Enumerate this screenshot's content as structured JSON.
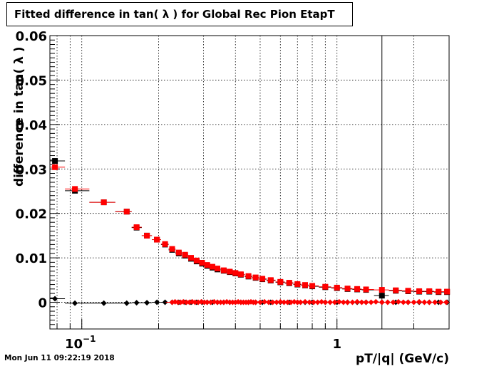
{
  "chart_data": {
    "type": "scatter",
    "title": "Fitted difference in tan( λ ) for Global Rec Pion EtapT",
    "xlabel": "pT/|q| (GeV/c)",
    "ylabel": "difference in tan( λ )",
    "xscale": "log",
    "xlim": [
      0.075,
      2.75
    ],
    "ylim": [
      -0.006,
      0.06
    ],
    "x_tick_labels": [
      "10^-1",
      "1"
    ],
    "y_tick_labels": [
      "0",
      "0.01",
      "0.02",
      "0.03",
      "0.04",
      "0.05",
      "0.06"
    ],
    "grid": true,
    "legend": "none",
    "vertical_line_x": 1.5,
    "series": [
      {
        "color": "#000000",
        "marker": "square",
        "x": [
          0.0785,
          0.094,
          0.122,
          0.15,
          0.164,
          0.18,
          0.197,
          0.212,
          0.226,
          0.24,
          0.254,
          0.268,
          0.282,
          0.296,
          0.31,
          0.325,
          0.34,
          0.36,
          0.38,
          0.4,
          0.42,
          0.45,
          0.48,
          0.51,
          0.55,
          0.6,
          0.65,
          0.7,
          0.75,
          0.8,
          0.9,
          1.0,
          1.1,
          1.2,
          1.3,
          1.5,
          1.7,
          1.9,
          2.1,
          2.3,
          2.5,
          2.7
        ],
        "y": [
          0.0318,
          0.0251,
          0.0225,
          0.0204,
          0.0168,
          0.015,
          0.0141,
          0.013,
          0.0118,
          0.011,
          0.0105,
          0.0098,
          0.0092,
          0.0087,
          0.0082,
          0.0078,
          0.0074,
          0.0071,
          0.0068,
          0.0065,
          0.0062,
          0.0058,
          0.0055,
          0.0052,
          0.0049,
          0.0045,
          0.0043,
          0.004,
          0.0038,
          0.0036,
          0.0034,
          0.0032,
          0.003,
          0.0029,
          0.0028,
          0.0015,
          0.0026,
          0.0025,
          0.0024,
          0.0024,
          0.0023,
          0.0023
        ]
      },
      {
        "color": "#ff0000",
        "marker": "square",
        "x": [
          0.0785,
          0.094,
          0.122,
          0.15,
          0.164,
          0.18,
          0.197,
          0.212,
          0.226,
          0.24,
          0.254,
          0.268,
          0.282,
          0.296,
          0.31,
          0.325,
          0.34,
          0.36,
          0.38,
          0.4,
          0.42,
          0.45,
          0.48,
          0.51,
          0.55,
          0.6,
          0.65,
          0.7,
          0.75,
          0.8,
          0.9,
          1.0,
          1.1,
          1.2,
          1.3,
          1.5,
          1.7,
          1.9,
          2.1,
          2.3,
          2.5,
          2.7
        ],
        "y": [
          0.0304,
          0.0255,
          0.0225,
          0.0204,
          0.0169,
          0.015,
          0.0141,
          0.0131,
          0.012,
          0.0112,
          0.0107,
          0.01,
          0.0094,
          0.0089,
          0.0084,
          0.008,
          0.0076,
          0.0072,
          0.0069,
          0.0066,
          0.0063,
          0.0059,
          0.0056,
          0.0053,
          0.005,
          0.0046,
          0.0044,
          0.0041,
          0.0039,
          0.0037,
          0.0035,
          0.0033,
          0.0031,
          0.003,
          0.0029,
          0.0028,
          0.0027,
          0.0026,
          0.0025,
          0.0025,
          0.0024,
          0.0024
        ]
      },
      {
        "color": "#000000",
        "marker": "diamond",
        "x": [
          0.0785,
          0.094,
          0.122,
          0.15,
          0.164,
          0.18,
          0.197,
          0.212,
          0.226,
          0.24,
          0.254,
          0.268,
          0.282,
          0.296,
          0.31,
          0.325,
          0.34,
          0.36,
          0.38,
          0.4,
          0.42,
          0.45,
          0.48,
          0.51,
          0.55,
          0.6,
          0.65,
          0.7,
          0.75,
          0.8,
          0.9,
          1.0,
          1.1,
          1.2,
          1.3,
          1.5,
          1.7,
          1.9,
          2.1,
          2.3,
          2.5,
          2.7
        ],
        "y": [
          0.0008,
          -0.0002,
          -0.0002,
          -0.0002,
          -0.0001,
          -0.0001,
          0.0,
          0.0,
          0.0,
          0.0,
          0.0,
          0.0,
          0.0,
          0.0,
          0.0,
          0.0,
          0.0,
          0.0,
          0.0,
          0.0,
          0.0,
          0.0,
          0.0,
          0.0,
          0.0,
          0.0,
          0.0,
          0.0,
          0.0,
          0.0,
          0.0,
          0.0,
          0.0,
          0.0,
          0.0,
          0.0,
          0.0,
          0.0,
          0.0,
          0.0,
          0.0,
          0.0
        ]
      },
      {
        "color": "#ff0000",
        "marker": "diamond",
        "x": [
          0.226,
          0.232,
          0.238,
          0.244,
          0.25,
          0.257,
          0.264,
          0.271,
          0.278,
          0.286,
          0.294,
          0.302,
          0.31,
          0.32,
          0.33,
          0.34,
          0.35,
          0.36,
          0.37,
          0.38,
          0.39,
          0.4,
          0.41,
          0.42,
          0.43,
          0.44,
          0.45,
          0.46,
          0.47,
          0.48,
          0.5,
          0.52,
          0.54,
          0.56,
          0.58,
          0.6,
          0.62,
          0.64,
          0.66,
          0.68,
          0.7,
          0.72,
          0.75,
          0.78,
          0.81,
          0.84,
          0.87,
          0.9,
          0.94,
          0.98,
          1.02,
          1.06,
          1.1,
          1.15,
          1.2,
          1.25,
          1.3,
          1.36,
          1.42,
          1.5,
          1.58,
          1.66,
          1.74,
          1.82,
          1.9,
          2.0,
          2.1,
          2.2,
          2.3,
          2.42,
          2.55,
          2.68
        ],
        "y": [
          0.0,
          0.0001,
          0.0,
          0.0,
          0.0001,
          0.0,
          0.0,
          0.0001,
          0.0,
          0.0,
          0.0001,
          0.0,
          0.0,
          0.0,
          0.0001,
          0.0,
          0.0,
          0.0,
          0.0001,
          0.0,
          0.0,
          0.0,
          0.0001,
          0.0,
          0.0,
          0.0,
          0.0,
          0.0001,
          0.0,
          0.0,
          0.0,
          0.0001,
          0.0,
          0.0,
          0.0,
          0.0001,
          0.0,
          0.0,
          0.0,
          0.0001,
          0.0,
          0.0,
          0.0001,
          0.0,
          0.0,
          0.0,
          0.0001,
          0.0,
          0.0,
          0.0,
          0.0001,
          0.0,
          0.0,
          0.0,
          0.0001,
          0.0,
          0.0,
          0.0,
          0.0001,
          0.0,
          0.0,
          0.0,
          0.0001,
          0.0,
          0.0,
          0.0,
          0.0001,
          0.0,
          0.0,
          0.0,
          0.0,
          0.0
        ]
      }
    ]
  },
  "datestamp": "Mon Jun 11 09:22:19 2018"
}
